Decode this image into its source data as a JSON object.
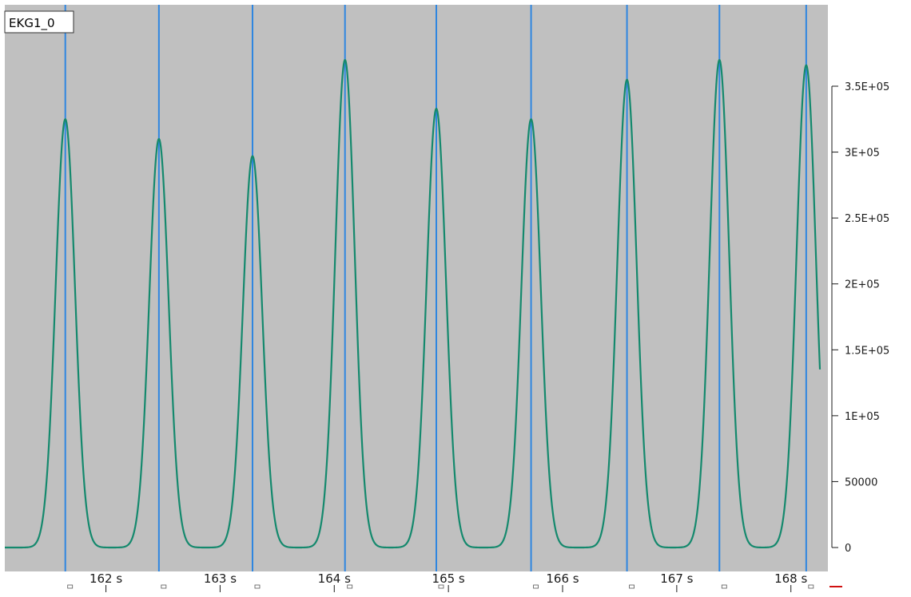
{
  "channel": {
    "name": "EKG1_0"
  },
  "colors": {
    "background": "#c0c0c0",
    "trace": "#14896d",
    "peak_markers": "#2f86e0"
  },
  "chart_data": {
    "type": "line",
    "title": "",
    "xlabel": "",
    "ylabel": "",
    "series": [
      {
        "name": "EKG1_0",
        "peaks": [
          {
            "t": 161.63,
            "value": 325000
          },
          {
            "t": 162.45,
            "value": 310000
          },
          {
            "t": 163.27,
            "value": 297000
          },
          {
            "t": 164.08,
            "value": 370000
          },
          {
            "t": 164.88,
            "value": 333000
          },
          {
            "t": 165.71,
            "value": 325000
          },
          {
            "t": 166.55,
            "value": 355000
          },
          {
            "t": 167.36,
            "value": 370000
          },
          {
            "t": 168.12,
            "value": 366000
          }
        ],
        "baseline": 0
      }
    ],
    "peak_markers_t": [
      161.63,
      162.45,
      163.27,
      164.08,
      164.88,
      165.71,
      166.55,
      167.36,
      168.12
    ],
    "x_ticks": [
      {
        "t": 162,
        "label": "162 s"
      },
      {
        "t": 163,
        "label": "163 s"
      },
      {
        "t": 164,
        "label": "164 s"
      },
      {
        "t": 165,
        "label": "165 s"
      },
      {
        "t": 166,
        "label": "166 s"
      },
      {
        "t": 167,
        "label": "167 s"
      },
      {
        "t": 168,
        "label": "168 s"
      }
    ],
    "y_ticks": [
      {
        "v": 350000,
        "label": "3.5E+05"
      },
      {
        "v": 300000,
        "label": "3E+05"
      },
      {
        "v": 250000,
        "label": "2.5E+05"
      },
      {
        "v": 200000,
        "label": "2E+05"
      },
      {
        "v": 150000,
        "label": "1.5E+05"
      },
      {
        "v": 100000,
        "label": "1E+05"
      },
      {
        "v": 50000,
        "label": "50000"
      },
      {
        "v": 0,
        "label": "0"
      }
    ],
    "xlim": [
      161.1,
      168.31
    ],
    "ylim": [
      0,
      350000
    ],
    "grid": false,
    "legend": "none"
  }
}
